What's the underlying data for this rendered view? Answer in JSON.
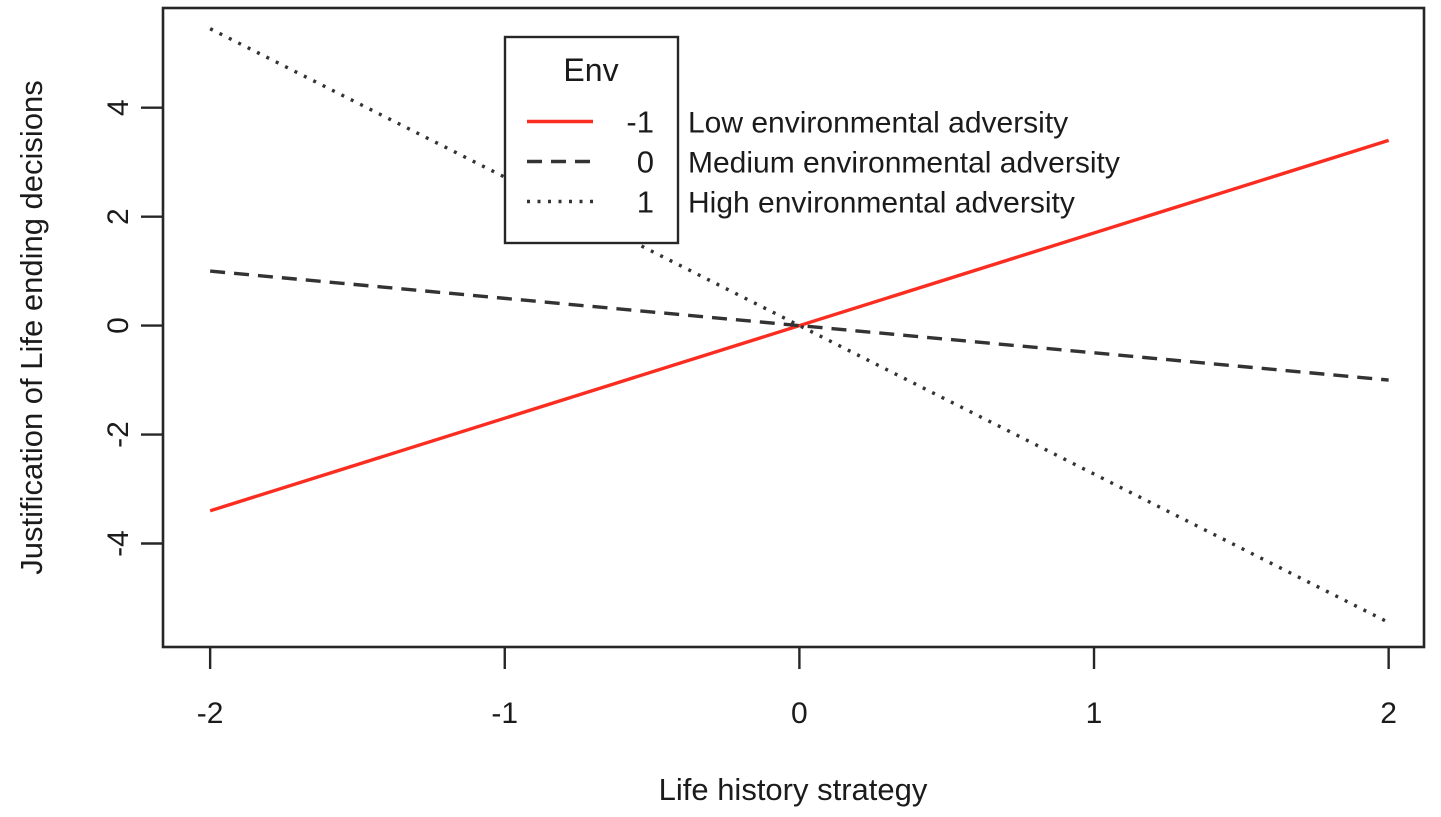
{
  "figure": {
    "background": "#ffffff",
    "text_color": "#1b1b1b",
    "axis_color": "#262626"
  },
  "chart_data": {
    "type": "line",
    "title": "",
    "xlabel": "Life history strategy",
    "ylabel": "Justification of Life ending decisions",
    "xlim": [
      -2.16,
      2.12
    ],
    "ylim": [
      -5.9,
      5.83
    ],
    "x_ticks": [
      "-2",
      "-1",
      "0",
      "1",
      "2"
    ],
    "x_tick_values": [
      -2,
      -1,
      0,
      1,
      2
    ],
    "y_ticks": [
      "-4",
      "-2",
      "0",
      "2",
      "4"
    ],
    "y_tick_values": [
      -4,
      -2,
      0,
      2,
      4
    ],
    "grid": false,
    "legend": {
      "title": "Env",
      "position": "top-center-inside",
      "entries": [
        {
          "value": "-1",
          "label": "Low environmental adversity",
          "line_style": "solid",
          "color": "#fb2d21"
        },
        {
          "value": "0",
          "label": "Medium environmental adversity",
          "line_style": "dashed",
          "color": "#333333"
        },
        {
          "value": "1",
          "label": "High environmental adversity",
          "line_style": "dotted",
          "color": "#333333"
        }
      ]
    },
    "series": [
      {
        "name": "Env = -1 (Low environmental adversity)",
        "line_style": "solid",
        "color": "#fb2d21",
        "x": [
          -2,
          2
        ],
        "y": [
          -3.4,
          3.4
        ]
      },
      {
        "name": "Env = 0 (Medium environmental adversity)",
        "line_style": "dashed",
        "color": "#333333",
        "x": [
          -2,
          2
        ],
        "y": [
          1.0,
          -1.0
        ]
      },
      {
        "name": "Env = 1 (High environmental adversity)",
        "line_style": "dotted",
        "color": "#333333",
        "x": [
          -2,
          2
        ],
        "y": [
          5.45,
          -5.45
        ]
      }
    ]
  }
}
